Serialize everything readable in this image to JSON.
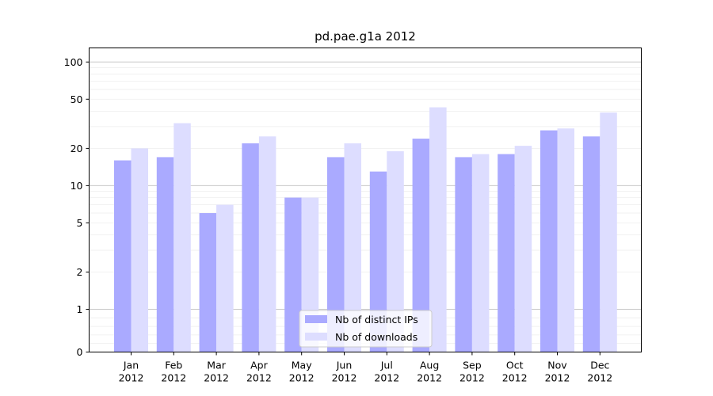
{
  "chart_data": {
    "type": "bar",
    "title": "pd.pae.g1a 2012",
    "xlabel": "",
    "ylabel": "",
    "y_scale": "symlog",
    "ylim": [
      0,
      130
    ],
    "y_ticks": [
      0,
      1,
      2,
      5,
      10,
      20,
      50,
      100
    ],
    "y_tick_labels": [
      "0",
      "1",
      "2",
      "5",
      "10",
      "20",
      "50",
      "100"
    ],
    "grid": true,
    "legend_position": "bottom-center",
    "categories": [
      [
        "Jan",
        "2012"
      ],
      [
        "Feb",
        "2012"
      ],
      [
        "Mar",
        "2012"
      ],
      [
        "Apr",
        "2012"
      ],
      [
        "May",
        "2012"
      ],
      [
        "Jun",
        "2012"
      ],
      [
        "Jul",
        "2012"
      ],
      [
        "Aug",
        "2012"
      ],
      [
        "Sep",
        "2012"
      ],
      [
        "Oct",
        "2012"
      ],
      [
        "Nov",
        "2012"
      ],
      [
        "Dec",
        "2012"
      ]
    ],
    "series": [
      {
        "name": "Nb of distinct IPs",
        "color": "#aaaaff",
        "values": [
          16,
          17,
          6,
          22,
          8,
          17,
          13,
          24,
          17,
          18,
          28,
          25
        ]
      },
      {
        "name": "Nb of downloads",
        "color": "#ddddff",
        "values": [
          20,
          32,
          7,
          25,
          8,
          22,
          19,
          43,
          18,
          21,
          29,
          39
        ]
      }
    ]
  }
}
